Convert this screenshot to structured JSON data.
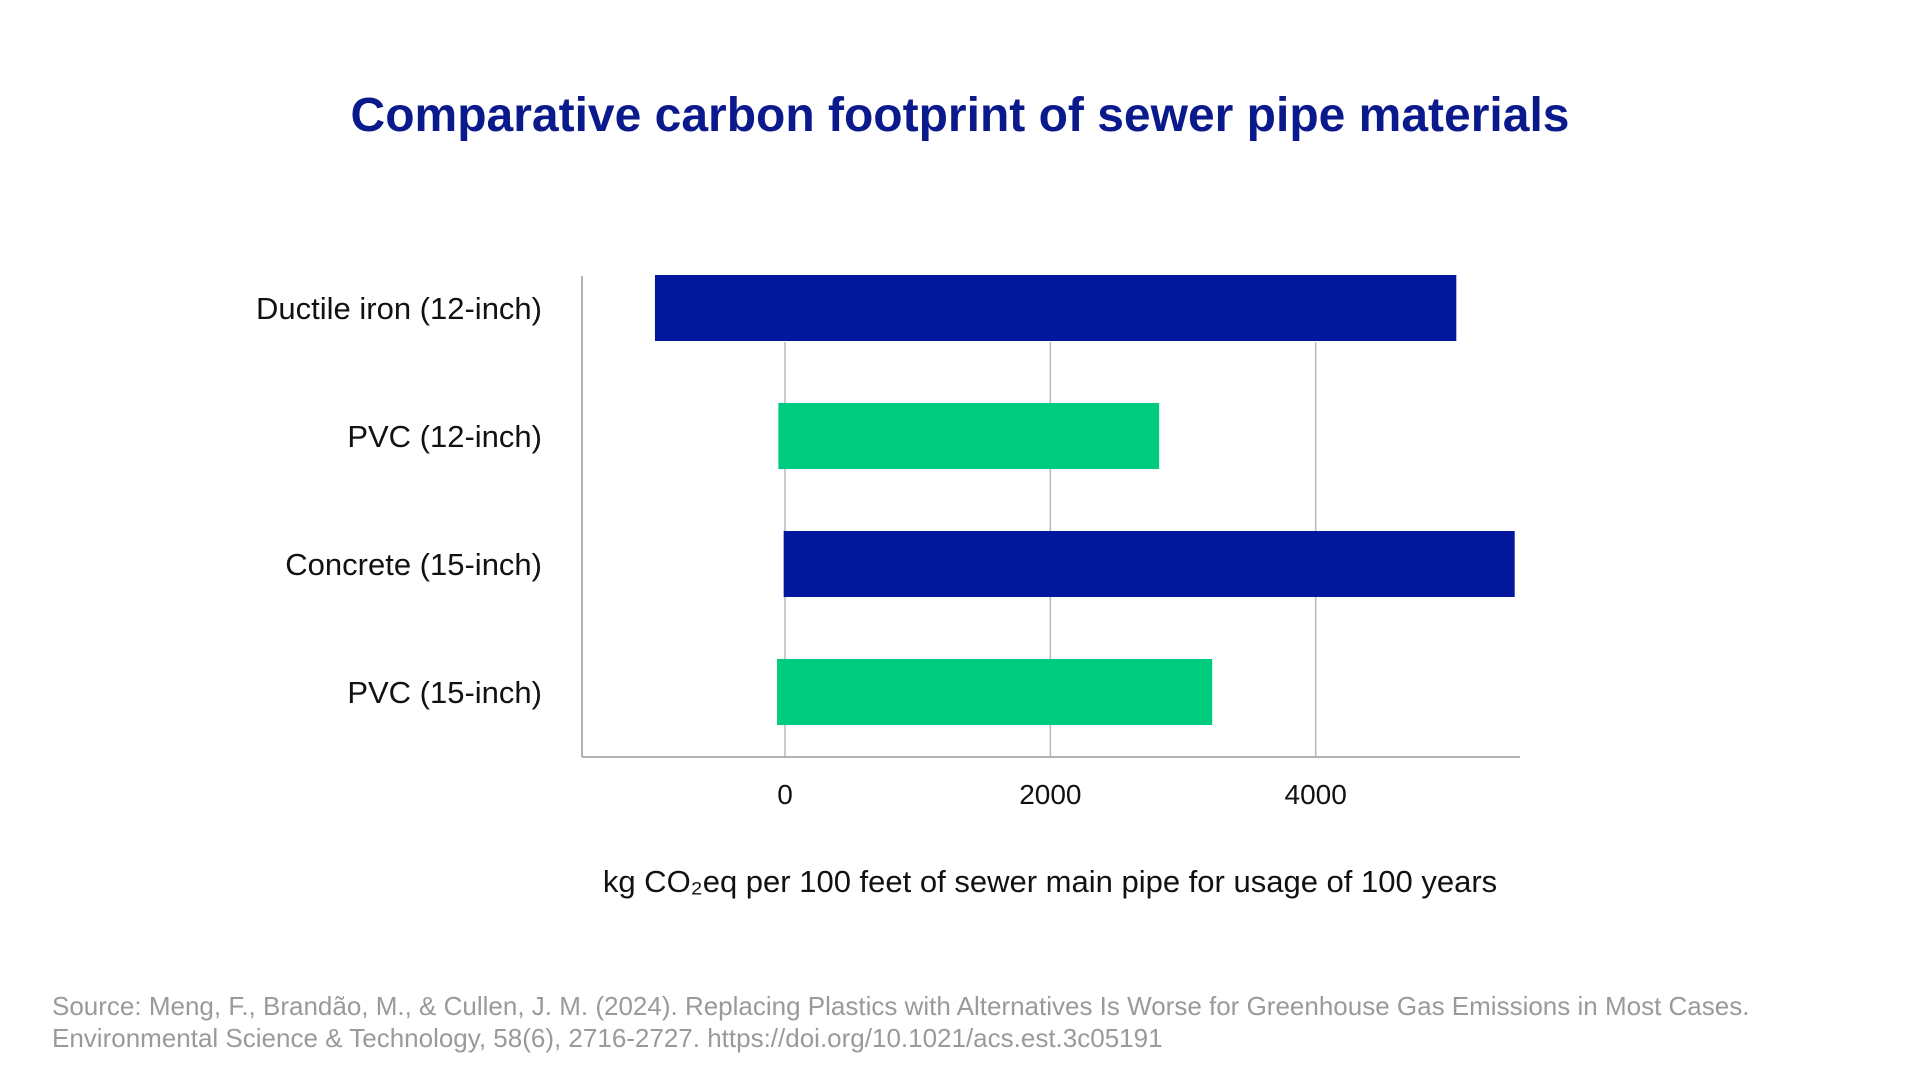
{
  "colors": {
    "title": "#0a1a8c",
    "grid": "#b8b8b8",
    "axis": "#9a9a9a",
    "source_text": "#9a9a9a"
  },
  "chart_data": {
    "type": "bar",
    "orientation": "horizontal",
    "title": "Comparative carbon footprint of sewer pipe materials",
    "xlabel": "kg CO₂eq per 100 feet of sewer main pipe for usage of 100 years",
    "ylabel": "",
    "categories": [
      "Ductile iron (12-inch)",
      "PVC (12-inch)",
      "Concrete (15-inch)",
      "PVC (15-inch)"
    ],
    "bars": [
      {
        "category": "Ductile iron (12-inch)",
        "start": -980,
        "end": 5060,
        "color": "#02179b"
      },
      {
        "category": "PVC (12-inch)",
        "start": -50,
        "end": 2820,
        "color": "#00cc80"
      },
      {
        "category": "Concrete (15-inch)",
        "start": -10,
        "end": 5500,
        "color": "#02179b"
      },
      {
        "category": "PVC (15-inch)",
        "start": -60,
        "end": 3220,
        "color": "#00cc80"
      }
    ],
    "xlim": [
      -1530,
      5540
    ],
    "xticks": [
      0,
      2000,
      4000
    ],
    "tick_labels": [
      "0",
      "2000",
      "4000"
    ],
    "grid": "vertical"
  },
  "source": {
    "line1": "Source: Meng, F., Brandão, M., & Cullen, J. M. (2024). Replacing Plastics with Alternatives Is Worse for Greenhouse Gas Emissions in Most Cases.",
    "line2": "Environmental Science & Technology, 58(6), 2716-2727. https://doi.org/10.1021/acs.est.3c05191"
  }
}
